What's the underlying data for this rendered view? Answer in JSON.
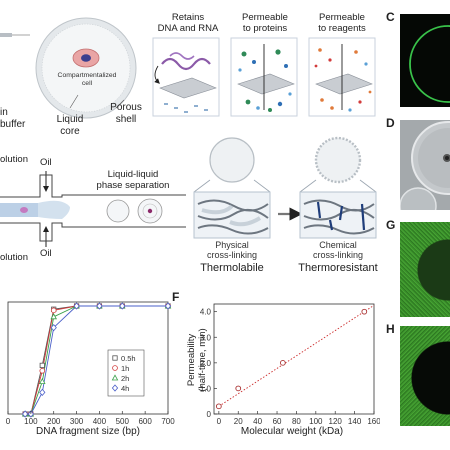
{
  "panel_a": {
    "buffer_text_1": "in",
    "buffer_text_2": "buffer",
    "cell_label_1": "Compartmentalized",
    "cell_label_2": "cell",
    "liquid_core_1": "Liquid",
    "liquid_core_2": "core",
    "porous_shell_1": "Porous",
    "porous_shell_2": "shell"
  },
  "panel_b": {
    "retains_1": "Retains",
    "retains_2": "DNA and RNA",
    "permeable_proteins_1": "Permeable",
    "permeable_proteins_2": "to proteins",
    "permeable_reagents_1": "Permeable",
    "permeable_reagents_2": "to reagents"
  },
  "panel_d": {
    "solution_top": "olution",
    "solution_bottom": "olution",
    "oil_top": "Oil",
    "oil_bottom": "Oil",
    "phase_sep_1": "Liquid-liquid",
    "phase_sep_2": "phase separation"
  },
  "panel_e": {
    "physical_1": "Physical",
    "physical_2": "cross-linking",
    "thermolabile": "Thermolabile",
    "chemical_1": "Chemical",
    "chemical_2": "cross-linking",
    "thermoresistant": "Thermoresistant"
  },
  "panel_labels": {
    "c": "C",
    "d": "D",
    "f": "F",
    "g": "G",
    "h": "H"
  },
  "colors": {
    "green_ring": "#39c24a",
    "dark_micro": "#050805",
    "micro_green": "#3a8f2a",
    "red_dotted": "#cc2a2a",
    "shell_grey": "#d8dde1"
  },
  "chart_data": [
    {
      "type": "line",
      "title": "",
      "xlabel": "DNA fragment size (bp)",
      "ylabel": "",
      "xlim": [
        0,
        700
      ],
      "x_ticks": [
        "0",
        "100",
        "200",
        "300",
        "400",
        "500",
        "600",
        "700"
      ],
      "x_tick_values": [
        0,
        100,
        200,
        300,
        400,
        500,
        600,
        700
      ],
      "legend_position": "right",
      "series": [
        {
          "name": "0.5h",
          "marker": "square",
          "color": "#555555",
          "x": [
            75,
            100,
            150,
            200,
            300,
            400,
            500,
            700
          ],
          "y": [
            0.0,
            0.0,
            0.45,
            0.97,
            1.0,
            1.0,
            1.0,
            1.0
          ]
        },
        {
          "name": "1h",
          "marker": "circle",
          "color": "#d23b3b",
          "x": [
            75,
            100,
            150,
            200,
            300,
            400,
            500,
            700
          ],
          "y": [
            0.0,
            0.0,
            0.4,
            0.96,
            1.0,
            1.0,
            1.0,
            1.0
          ]
        },
        {
          "name": "2h",
          "marker": "triangle",
          "color": "#3aa04a",
          "x": [
            75,
            100,
            150,
            200,
            300,
            400,
            500,
            700
          ],
          "y": [
            0.0,
            0.0,
            0.3,
            0.9,
            1.0,
            1.0,
            1.0,
            1.0
          ]
        },
        {
          "name": "4h",
          "marker": "diamond",
          "color": "#4a5fc9",
          "x": [
            75,
            100,
            150,
            200,
            300,
            400,
            500,
            700
          ],
          "y": [
            0.0,
            0.0,
            0.2,
            0.8,
            1.0,
            1.0,
            1.0,
            1.0
          ]
        }
      ]
    },
    {
      "type": "scatter",
      "title": "",
      "xlabel": "Molecular weight (kDa)",
      "ylabel": "Permeability\n(half-time, min)",
      "ylabel_line1": "Permeability",
      "ylabel_line2": "(half-time, min)",
      "xlim": [
        -5,
        160
      ],
      "ylim": [
        0,
        4.3
      ],
      "x_ticks": [
        "0",
        "20",
        "40",
        "60",
        "80",
        "100",
        "120",
        "140",
        "160"
      ],
      "x_tick_values": [
        0,
        20,
        40,
        60,
        80,
        100,
        120,
        140,
        160
      ],
      "y_ticks": [
        "0",
        "1.0",
        "2.0",
        "3.0",
        "4.0"
      ],
      "y_tick_values": [
        0,
        1,
        2,
        3,
        4
      ],
      "points": {
        "x": [
          0,
          20,
          66,
          150
        ],
        "y": [
          0.3,
          1.0,
          2.0,
          4.0
        ]
      },
      "fit_line": {
        "x": [
          0,
          160
        ],
        "y": [
          0.3,
          4.25
        ]
      }
    }
  ]
}
